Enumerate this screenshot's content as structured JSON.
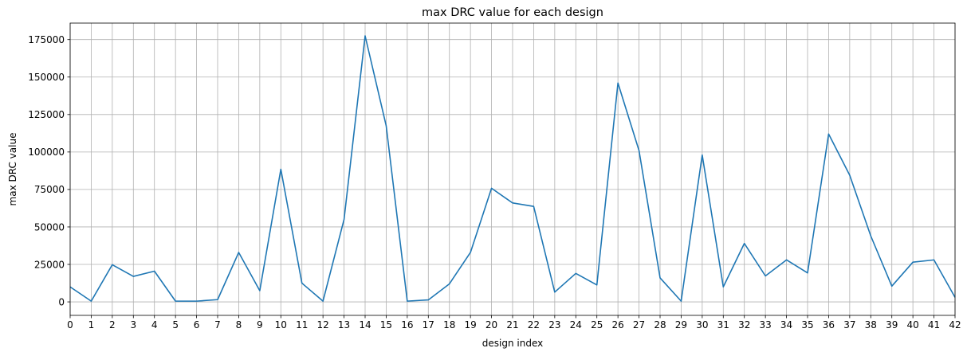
{
  "chart_data": {
    "type": "line",
    "title": "max DRC value for each design",
    "xlabel": "design index",
    "ylabel": "max DRC value",
    "xlim": [
      0,
      42
    ],
    "ylim": [
      -9000,
      186000
    ],
    "xticks": [
      0,
      1,
      2,
      3,
      4,
      5,
      6,
      7,
      8,
      9,
      10,
      11,
      12,
      13,
      14,
      15,
      16,
      17,
      18,
      19,
      20,
      21,
      22,
      23,
      24,
      25,
      26,
      27,
      28,
      29,
      30,
      31,
      32,
      33,
      34,
      35,
      36,
      37,
      38,
      39,
      40,
      41,
      42
    ],
    "yticks": [
      0,
      25000,
      50000,
      75000,
      100000,
      125000,
      150000,
      175000
    ],
    "grid": true,
    "line_color": "#1f77b4",
    "series": [
      {
        "x": [
          0,
          1,
          2,
          3,
          4,
          5,
          6,
          7,
          8,
          9,
          10,
          11,
          12,
          13,
          14,
          15,
          16,
          17,
          18,
          19,
          20,
          21,
          22,
          23,
          24,
          25,
          26,
          27,
          28,
          29,
          30,
          31,
          32,
          33,
          34,
          35,
          36,
          37,
          38,
          39,
          40,
          41,
          42
        ],
        "values": [
          10000,
          500,
          24800,
          17000,
          20500,
          500,
          500,
          1500,
          33000,
          7500,
          88500,
          12500,
          500,
          55000,
          177500,
          117500,
          500,
          1300,
          12000,
          33000,
          75800,
          66000,
          63700,
          6500,
          19000,
          11300,
          146000,
          101000,
          16000,
          500,
          98000,
          10000,
          39000,
          17300,
          28000,
          19300,
          112000,
          84500,
          44000,
          10500,
          26500,
          28000,
          3000
        ]
      }
    ]
  }
}
